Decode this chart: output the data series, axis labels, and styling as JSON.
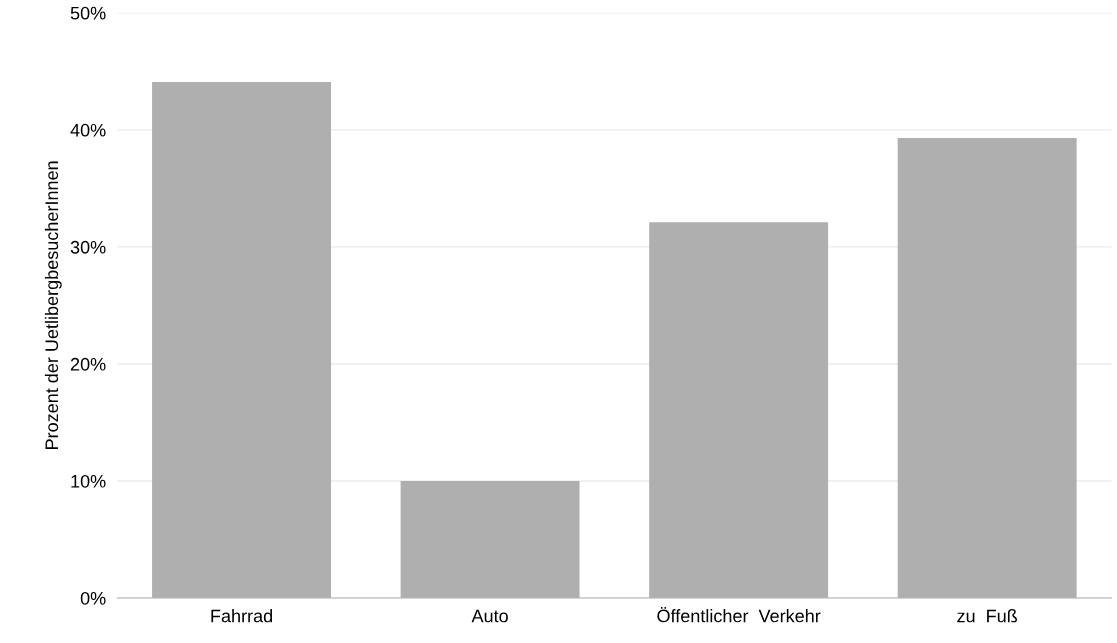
{
  "chart_data": {
    "type": "bar",
    "ylabel": "Prozent der UetlibergbesucherInnen",
    "categories": [
      "Fahrrad",
      "Auto",
      "Öffentlicher  Verkehr",
      "zu  Fuß"
    ],
    "values": [
      44.1,
      10.0,
      32.1,
      39.3
    ],
    "color": "#afafaf",
    "ylim": [
      0,
      50
    ],
    "yticks": [
      {
        "value": 0,
        "label": "0%"
      },
      {
        "value": 10,
        "label": "10%"
      },
      {
        "value": 20,
        "label": "20%"
      },
      {
        "value": 30,
        "label": "30%"
      },
      {
        "value": 40,
        "label": "40%"
      },
      {
        "value": 50,
        "label": "50%"
      }
    ],
    "grid": "y"
  }
}
